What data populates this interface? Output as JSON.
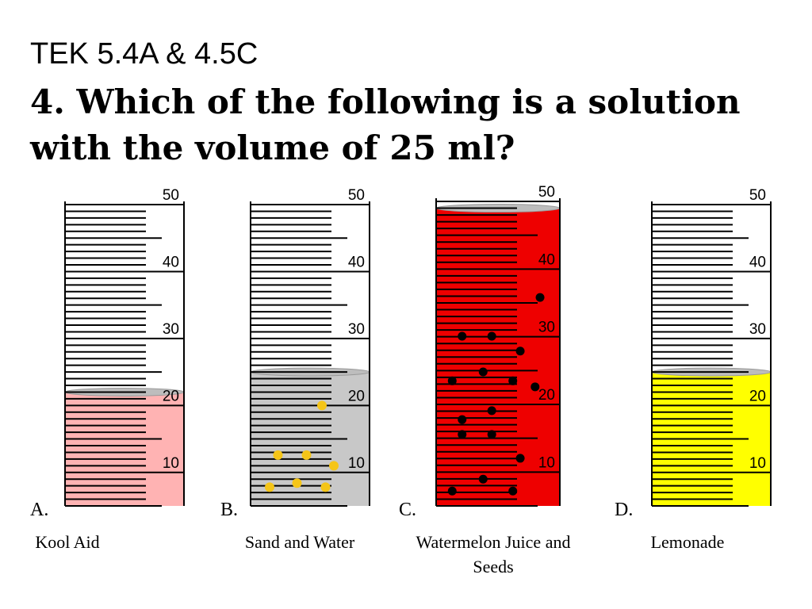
{
  "header": {
    "tek": "TEK 5.4A & 4.5C",
    "question": "4. Which of the following is a solution with the volume of 25 ml?"
  },
  "cylinder_scale": {
    "min": 5,
    "max": 50,
    "labels": [
      "50",
      "40",
      "30",
      "20",
      "10"
    ]
  },
  "options": [
    {
      "letter": "A.",
      "name": "Kool Aid",
      "fill_ml": 22,
      "liquid_color": "#ffb3b3",
      "particles": 0,
      "particle_color": ""
    },
    {
      "letter": "B.",
      "name": "Sand and Water",
      "fill_ml": 25,
      "liquid_color": "#c8c8c8",
      "particles": 7,
      "particle_color": "#f5c518"
    },
    {
      "letter": "C.",
      "name": "Watermelon Juice and Seeds",
      "fill_ml": 49,
      "liquid_color": "#ee0000",
      "particles": 16,
      "particle_color": "#000000"
    },
    {
      "letter": "D.",
      "name": "Lemonade",
      "fill_ml": 25,
      "liquid_color": "#ffff00",
      "particles": 0,
      "particle_color": ""
    }
  ]
}
